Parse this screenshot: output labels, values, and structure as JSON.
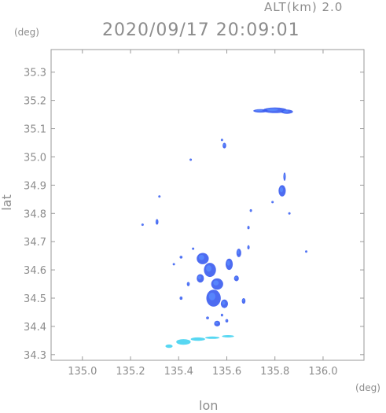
{
  "header": {
    "altitude": "ALT(km) 2.0",
    "timestamp": "2020/09/17 20:09:01"
  },
  "axes": {
    "x_unit": "(deg)",
    "y_unit": "(deg)",
    "x_label": "lon",
    "y_label": "lat"
  },
  "chart_data": {
    "type": "scatter",
    "x_ticks": [
      "135.0",
      "135.2",
      "135.4",
      "135.6",
      "135.8",
      "136.0"
    ],
    "y_ticks": [
      "35.3",
      "35.2",
      "35.1",
      "35.0",
      "34.9",
      "34.8",
      "34.7",
      "34.6",
      "34.5",
      "34.4",
      "34.3"
    ],
    "xlim": [
      134.87,
      136.17
    ],
    "ylim": [
      34.28,
      35.38
    ],
    "grid": false,
    "echoes": [
      {
        "lon": 135.8,
        "lat": 35.165,
        "w": 0.1,
        "h": 0.02
      },
      {
        "lon": 135.74,
        "lat": 35.163,
        "w": 0.06,
        "h": 0.012
      },
      {
        "lon": 135.85,
        "lat": 35.16,
        "w": 0.05,
        "h": 0.015
      },
      {
        "lon": 135.59,
        "lat": 35.04,
        "w": 0.015,
        "h": 0.02
      },
      {
        "lon": 135.58,
        "lat": 35.06,
        "w": 0.008,
        "h": 0.008
      },
      {
        "lon": 135.45,
        "lat": 34.99,
        "w": 0.008,
        "h": 0.008
      },
      {
        "lon": 135.32,
        "lat": 34.86,
        "w": 0.006,
        "h": 0.005
      },
      {
        "lon": 135.25,
        "lat": 34.76,
        "w": 0.008,
        "h": 0.008
      },
      {
        "lon": 135.31,
        "lat": 34.77,
        "w": 0.012,
        "h": 0.02
      },
      {
        "lon": 135.83,
        "lat": 34.88,
        "w": 0.03,
        "h": 0.04
      },
      {
        "lon": 135.84,
        "lat": 34.93,
        "w": 0.01,
        "h": 0.03
      },
      {
        "lon": 135.79,
        "lat": 34.84,
        "w": 0.008,
        "h": 0.008
      },
      {
        "lon": 135.86,
        "lat": 34.8,
        "w": 0.006,
        "h": 0.006
      },
      {
        "lon": 135.7,
        "lat": 34.81,
        "w": 0.006,
        "h": 0.01
      },
      {
        "lon": 135.69,
        "lat": 34.75,
        "w": 0.006,
        "h": 0.012
      },
      {
        "lon": 135.93,
        "lat": 34.665,
        "w": 0.005,
        "h": 0.005
      },
      {
        "lon": 135.46,
        "lat": 34.675,
        "w": 0.008,
        "h": 0.008
      },
      {
        "lon": 135.41,
        "lat": 34.645,
        "w": 0.012,
        "h": 0.01
      },
      {
        "lon": 135.38,
        "lat": 34.62,
        "w": 0.008,
        "h": 0.008
      },
      {
        "lon": 135.5,
        "lat": 34.64,
        "w": 0.05,
        "h": 0.04
      },
      {
        "lon": 135.53,
        "lat": 34.6,
        "w": 0.05,
        "h": 0.05
      },
      {
        "lon": 135.56,
        "lat": 34.55,
        "w": 0.05,
        "h": 0.04
      },
      {
        "lon": 135.545,
        "lat": 34.5,
        "w": 0.06,
        "h": 0.06
      },
      {
        "lon": 135.59,
        "lat": 34.48,
        "w": 0.03,
        "h": 0.03
      },
      {
        "lon": 135.49,
        "lat": 34.57,
        "w": 0.03,
        "h": 0.03
      },
      {
        "lon": 135.61,
        "lat": 34.62,
        "w": 0.03,
        "h": 0.04
      },
      {
        "lon": 135.65,
        "lat": 34.66,
        "w": 0.02,
        "h": 0.03
      },
      {
        "lon": 135.64,
        "lat": 34.57,
        "w": 0.02,
        "h": 0.02
      },
      {
        "lon": 135.67,
        "lat": 34.49,
        "w": 0.015,
        "h": 0.02
      },
      {
        "lon": 135.69,
        "lat": 34.68,
        "w": 0.01,
        "h": 0.015
      },
      {
        "lon": 135.44,
        "lat": 34.55,
        "w": 0.012,
        "h": 0.015
      },
      {
        "lon": 135.41,
        "lat": 34.5,
        "w": 0.012,
        "h": 0.012
      },
      {
        "lon": 135.56,
        "lat": 34.41,
        "w": 0.025,
        "h": 0.02
      },
      {
        "lon": 135.6,
        "lat": 34.42,
        "w": 0.012,
        "h": 0.012
      },
      {
        "lon": 135.52,
        "lat": 34.43,
        "w": 0.012,
        "h": 0.01
      },
      {
        "lon": 135.58,
        "lat": 34.44,
        "w": 0.01,
        "h": 0.01
      }
    ],
    "coastal_band": [
      {
        "lon": 135.36,
        "lat": 34.33,
        "w": 0.03,
        "h": 0.012
      },
      {
        "lon": 135.42,
        "lat": 34.345,
        "w": 0.06,
        "h": 0.02
      },
      {
        "lon": 135.48,
        "lat": 34.355,
        "w": 0.06,
        "h": 0.012
      },
      {
        "lon": 135.54,
        "lat": 34.36,
        "w": 0.06,
        "h": 0.008
      },
      {
        "lon": 135.605,
        "lat": 34.365,
        "w": 0.05,
        "h": 0.006
      }
    ]
  },
  "colors": {
    "frame": "#9a9a9a",
    "echo_main": "#3a5cf0",
    "echo_light": "#5a8cff",
    "echo_cyan": "#3ad0f0",
    "text": "#8c8c8c"
  }
}
